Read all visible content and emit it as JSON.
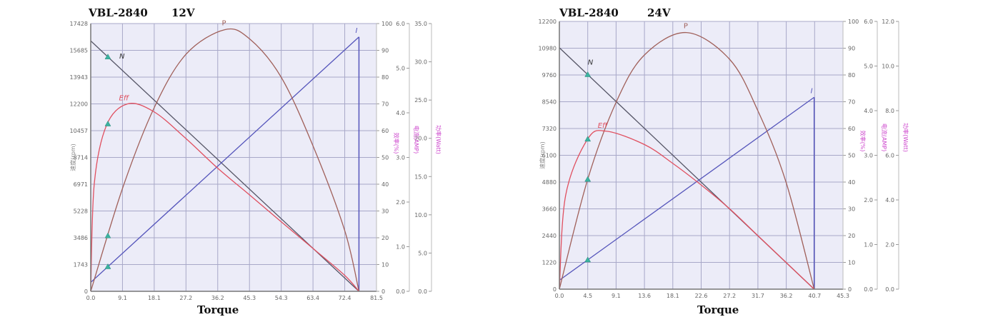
{
  "charts": [
    {
      "title_model": "VBL-2840",
      "title_voltage": "12V",
      "xlabel": "Torque",
      "ylabel_speed": "速度(rpm)",
      "ylabel_eff": "效率(%)",
      "ylabel_current": "电流(AMP)",
      "ylabel_power": "功率(Watt)",
      "x_ticks": [
        "0.0",
        "9.1",
        "18.1",
        "27.2",
        "36.2",
        "45.3",
        "54.3",
        "63.4",
        "72.4",
        "81.5"
      ],
      "speed_ticks": [
        "0",
        "1743",
        "3486",
        "5228",
        "6971",
        "8714",
        "10457",
        "12200",
        "13943",
        "15685",
        "17428"
      ],
      "eff_ticks": [
        "0",
        "10",
        "20",
        "30",
        "40",
        "50",
        "60",
        "70",
        "80",
        "90",
        "100"
      ],
      "current_ticks": [
        "0.0",
        "1.0",
        "2.0",
        "3.0",
        "4.0",
        "5.0",
        "6.0"
      ],
      "power_ticks": [
        "0.0",
        "5.0",
        "10.0",
        "15.0",
        "20.0",
        "25.0",
        "30.0",
        "35.0"
      ],
      "curve_labels": {
        "N": "N",
        "P": "P",
        "Eff": "Eff",
        "I": "I"
      }
    },
    {
      "title_model": "VBL-2840",
      "title_voltage": "24V",
      "xlabel": "Torque",
      "ylabel_speed": "速度(rpm)",
      "ylabel_eff": "效率(%)",
      "ylabel_current": "电流(AMP)",
      "ylabel_power": "功率(Watt)",
      "x_ticks": [
        "0.0",
        "4.5",
        "9.1",
        "13.6",
        "18.1",
        "22.6",
        "27.2",
        "31.7",
        "36.2",
        "40.7",
        "45.3"
      ],
      "speed_ticks": [
        "0",
        "1220",
        "2440",
        "3660",
        "4880",
        "6100",
        "7320",
        "8540",
        "9760",
        "10980",
        "12200"
      ],
      "eff_ticks": [
        "0",
        "10",
        "20",
        "30",
        "40",
        "50",
        "60",
        "70",
        "80",
        "90",
        "100"
      ],
      "current_ticks": [
        "0.0",
        "1.0",
        "2.0",
        "3.0",
        "4.0",
        "5.0",
        "6.0"
      ],
      "power_ticks": [
        "0.0",
        "2.0",
        "4.0",
        "6.0",
        "8.0",
        "10.0",
        "12.0"
      ],
      "curve_labels": {
        "N": "N",
        "P": "P",
        "Eff": "Eff",
        "I": "I"
      }
    }
  ],
  "colors": {
    "speed": "#555566",
    "power": "#a0605a",
    "eff": "#e05060",
    "current": "#5555bb",
    "marker": "#3bb3a0",
    "grid": "#a8a8c8",
    "plot_bg": "#ececf8",
    "axis_label": "#cc44cc"
  },
  "chart_data": [
    {
      "type": "line",
      "title": "VBL-2840 12V",
      "xlabel": "Torque",
      "ylabel": "速度(rpm)",
      "xlim": [
        0,
        81.5
      ],
      "ylim": [
        0,
        17428
      ],
      "grid": true,
      "series": [
        {
          "name": "N (speed, rpm)",
          "x": [
            0,
            76.5
          ],
          "y": [
            16300,
            0
          ]
        },
        {
          "name": "I (current, A)",
          "x": [
            0,
            76.5
          ],
          "y": [
            0.2,
            5.7
          ]
        },
        {
          "name": "P (power, W)",
          "x": [
            0,
            9.1,
            18.1,
            27.2,
            38.2,
            45.3,
            54.3,
            63.4,
            72.4,
            76.5
          ],
          "y": [
            0,
            13.5,
            24,
            31,
            34.2,
            33,
            28,
            19,
            8,
            0
          ]
        },
        {
          "name": "Eff (%)",
          "x": [
            0,
            1,
            4.5,
            10.5,
            18.1,
            27.2,
            36.2,
            45.3,
            54.3,
            63.4,
            72.4,
            76.5
          ],
          "y": [
            0,
            40,
            62,
            70,
            67,
            57,
            46,
            36,
            26,
            16,
            6,
            0
          ]
        }
      ],
      "secondary_axes": {
        "eff_range": [
          0,
          100
        ],
        "current_range": [
          0,
          6.0
        ],
        "power_range": [
          0,
          35.0
        ]
      }
    },
    {
      "type": "line",
      "title": "VBL-2840 24V",
      "xlabel": "Torque",
      "ylabel": "速度(rpm)",
      "xlim": [
        0,
        45.3
      ],
      "ylim": [
        0,
        12200
      ],
      "grid": true,
      "series": [
        {
          "name": "N (speed, rpm)",
          "x": [
            0,
            40.7
          ],
          "y": [
            11000,
            0
          ]
        },
        {
          "name": "I (current, A)",
          "x": [
            0,
            40.7
          ],
          "y": [
            0.2,
            4.3
          ]
        },
        {
          "name": "P (power, W)",
          "x": [
            0,
            4.5,
            9.1,
            13.6,
            20.3,
            27.2,
            31.7,
            36.2,
            40.7
          ],
          "y": [
            0,
            4.9,
            8.4,
            10.5,
            11.5,
            10.3,
            8.0,
            4.8,
            0
          ]
        },
        {
          "name": "Eff (%)",
          "x": [
            0,
            1,
            4.5,
            7.5,
            13.6,
            18.1,
            22.6,
            27.2,
            31.7,
            36.2,
            40.7
          ],
          "y": [
            0,
            35,
            56,
            59,
            54,
            47,
            39,
            30,
            20,
            10,
            0
          ]
        }
      ],
      "secondary_axes": {
        "eff_range": [
          0,
          100
        ],
        "current_range": [
          0,
          6.0
        ],
        "power_range": [
          0,
          12.0
        ]
      }
    }
  ]
}
